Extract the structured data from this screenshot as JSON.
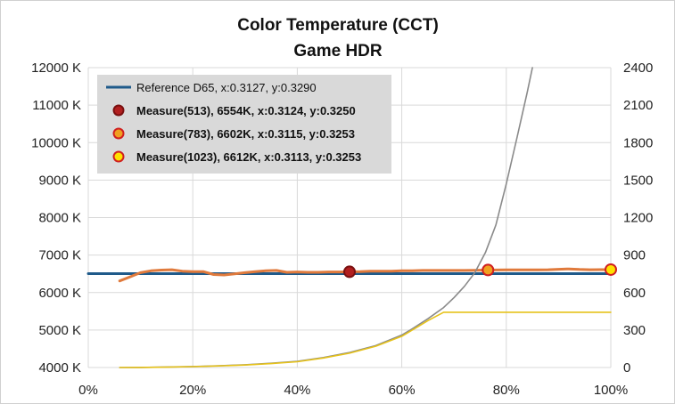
{
  "chart_data": {
    "type": "line",
    "title": "Color Temperature (CCT)",
    "subtitle": "Game HDR",
    "xlabel": "",
    "ylabel": "",
    "x_ticks": [
      "0%",
      "20%",
      "40%",
      "60%",
      "80%",
      "100%"
    ],
    "xlim": [
      0,
      100
    ],
    "y_left_ticks": [
      "4000 K",
      "5000 K",
      "6000 K",
      "7000 K",
      "8000 K",
      "9000 K",
      "10000 K",
      "11000 K",
      "12000 K"
    ],
    "ylim_left": [
      4000,
      12000
    ],
    "y_right_ticks": [
      "0",
      "300",
      "600",
      "900",
      "1200",
      "1500",
      "1800",
      "2100",
      "2400"
    ],
    "ylim_right": [
      0,
      2400
    ],
    "grid": true,
    "legend_position": "top-left",
    "legend": [
      {
        "label": "Reference D65, x:0.3127, y:0.3290",
        "kind": "line",
        "color": "#1f5a8a"
      },
      {
        "label": "Measure(513), 6554K, x:0.3124, y:0.3250",
        "kind": "marker",
        "fill": "#b21f1f",
        "stroke": "#7a1010"
      },
      {
        "label": "Measure(783), 6602K, x:0.3115, y:0.3253",
        "kind": "marker",
        "fill": "#f0a020",
        "stroke": "#d02020"
      },
      {
        "label": "Measure(1023), 6612K, x:0.3113, y:0.3253",
        "kind": "marker",
        "fill": "#ffe000",
        "stroke": "#d02020"
      }
    ],
    "series": [
      {
        "name": "Reference D65, x:0.3127, y:0.3290",
        "axis": "left",
        "color": "#1f5a8a",
        "x": [
          0,
          100
        ],
        "y": [
          6504,
          6504
        ]
      },
      {
        "axis": "left",
        "color": "#e07a3c",
        "x": [
          6,
          8,
          10,
          12,
          14,
          16,
          18,
          20,
          22,
          24,
          26,
          28,
          30,
          32,
          34,
          36,
          38,
          40,
          42,
          44,
          46,
          48,
          50,
          52,
          54,
          56,
          58,
          60,
          62,
          64,
          66,
          68,
          70,
          72,
          74,
          76,
          78,
          80,
          82,
          84,
          86,
          88,
          90,
          92,
          94,
          96,
          98,
          100
        ],
        "y": [
          6310,
          6420,
          6530,
          6580,
          6600,
          6610,
          6570,
          6560,
          6560,
          6480,
          6470,
          6500,
          6530,
          6560,
          6580,
          6590,
          6540,
          6550,
          6540,
          6540,
          6550,
          6550,
          6554,
          6560,
          6570,
          6570,
          6570,
          6580,
          6580,
          6590,
          6590,
          6590,
          6590,
          6590,
          6595,
          6600,
          6602,
          6605,
          6605,
          6605,
          6605,
          6610,
          6620,
          6630,
          6615,
          6610,
          6611,
          6612
        ]
      },
      {
        "axis": "right",
        "color": "#8a8a8a",
        "x": [
          6,
          10,
          15,
          20,
          25,
          30,
          35,
          40,
          45,
          50,
          55,
          60,
          62,
          65,
          68,
          70,
          72,
          74,
          76,
          78,
          80,
          82,
          84,
          85
        ],
        "y": [
          0,
          1,
          4,
          8,
          14,
          22,
          34,
          50,
          80,
          120,
          175,
          260,
          310,
          390,
          480,
          560,
          650,
          760,
          920,
          1140,
          1470,
          1830,
          2200,
          2400
        ]
      },
      {
        "axis": "right",
        "color": "#e6c21a",
        "x": [
          6,
          10,
          15,
          20,
          25,
          30,
          35,
          40,
          45,
          50,
          55,
          60,
          62,
          65,
          68,
          70,
          75,
          80,
          85,
          90,
          95,
          100
        ],
        "y": [
          0,
          1,
          3,
          7,
          13,
          20,
          31,
          46,
          76,
          115,
          170,
          250,
          300,
          375,
          442,
          442,
          442,
          442,
          442,
          442,
          442,
          442
        ]
      }
    ],
    "markers": [
      {
        "label": "Measure(513)",
        "x": 50,
        "y": 6554,
        "fill": "#b21f1f",
        "stroke": "#7a1010"
      },
      {
        "label": "Measure(783)",
        "x": 76.5,
        "y": 6602,
        "fill": "#f0a020",
        "stroke": "#d02020"
      },
      {
        "label": "Measure(1023)",
        "x": 100,
        "y": 6612,
        "fill": "#ffe000",
        "stroke": "#d02020"
      }
    ]
  }
}
